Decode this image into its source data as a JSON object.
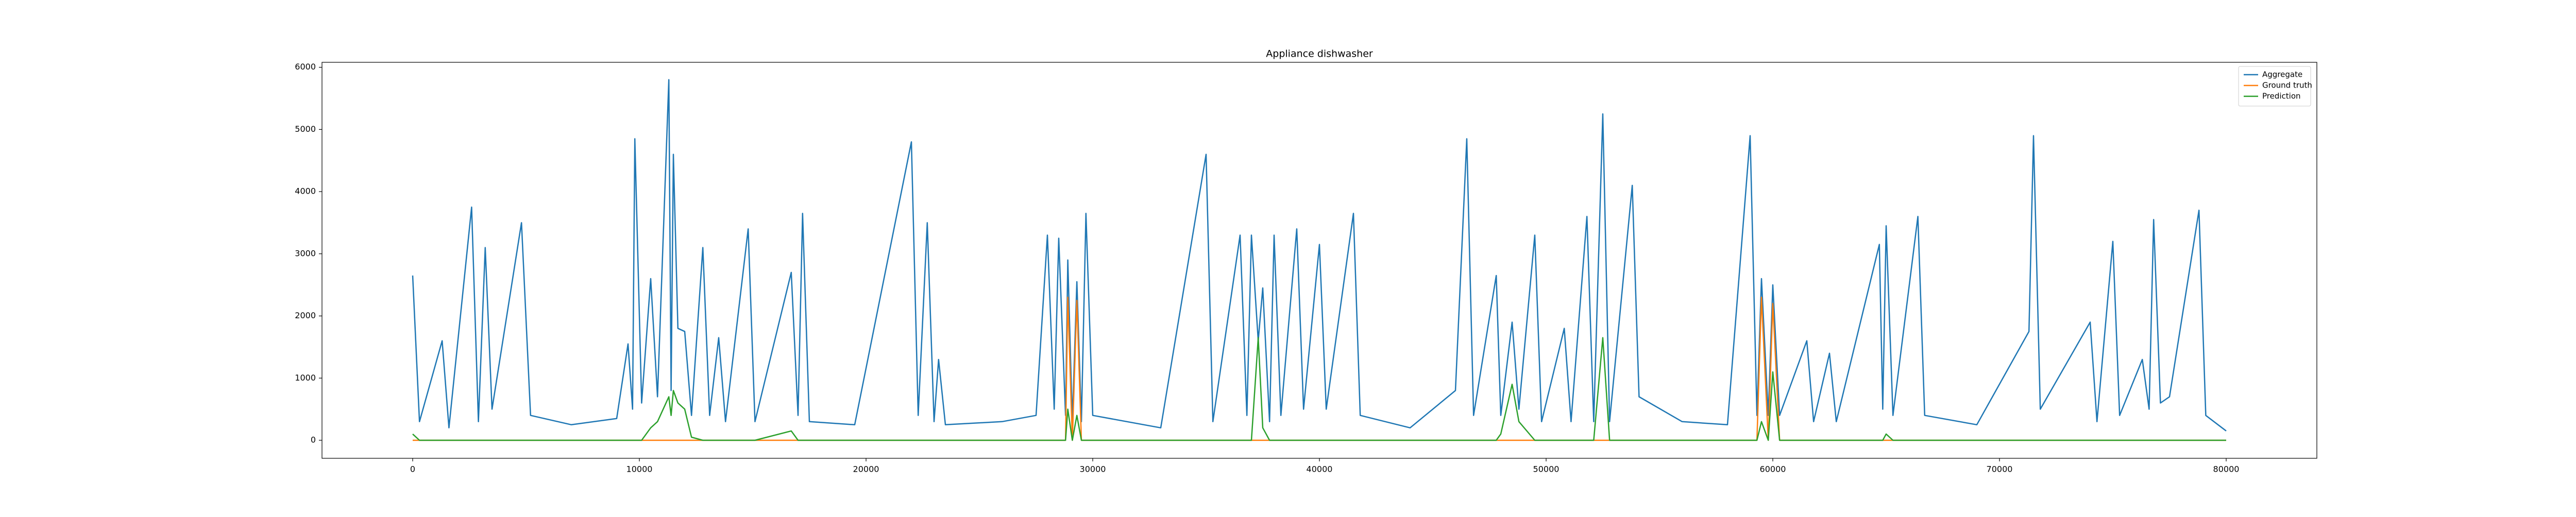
{
  "chart_data": {
    "type": "line",
    "title": "Appliance dishwasher",
    "x": [
      0,
      300,
      1300,
      1600,
      2600,
      2900,
      3200,
      3500,
      4800,
      5200,
      7000,
      9000,
      9500,
      9700,
      9800,
      10100,
      10500,
      10800,
      11300,
      11400,
      11500,
      11700,
      12000,
      12300,
      12800,
      13100,
      13500,
      13800,
      14800,
      15100,
      16700,
      17000,
      17200,
      17500,
      19500,
      22000,
      22300,
      22700,
      23000,
      23200,
      23500,
      26000,
      27500,
      28000,
      28300,
      28500,
      28800,
      28900,
      29100,
      29300,
      29500,
      29700,
      30000,
      33000,
      35000,
      35300,
      36500,
      36800,
      37000,
      37300,
      37500,
      37800,
      38000,
      38300,
      39000,
      39300,
      40000,
      40300,
      41500,
      41800,
      44000,
      46000,
      46500,
      46800,
      47800,
      48000,
      48500,
      48800,
      49500,
      49800,
      50800,
      51100,
      51800,
      52100,
      52500,
      52800,
      53800,
      54100,
      56000,
      58000,
      59000,
      59300,
      59500,
      59800,
      60000,
      60300,
      61500,
      61800,
      62500,
      62800,
      64700,
      64850,
      65000,
      65300,
      66400,
      66700,
      69000,
      71300,
      71500,
      71800,
      74000,
      74300,
      75000,
      75300,
      76300,
      76600,
      76800,
      77100,
      77500,
      78800,
      79100,
      80000
    ],
    "series": [
      {
        "name": "Aggregate",
        "color": "#1f77b4",
        "values": [
          2650,
          300,
          1600,
          200,
          3750,
          300,
          3100,
          500,
          3500,
          400,
          250,
          350,
          1550,
          500,
          4850,
          600,
          2600,
          700,
          5800,
          800,
          4600,
          1800,
          1750,
          400,
          3100,
          400,
          1650,
          300,
          3400,
          300,
          2700,
          400,
          3650,
          300,
          250,
          4800,
          400,
          3500,
          300,
          1300,
          250,
          300,
          400,
          3300,
          500,
          3250,
          400,
          2900,
          300,
          2550,
          300,
          3650,
          400,
          200,
          4600,
          300,
          3300,
          400,
          3300,
          1600,
          2450,
          300,
          3300,
          400,
          3400,
          500,
          3150,
          500,
          3650,
          400,
          200,
          800,
          4850,
          400,
          2650,
          400,
          1900,
          500,
          3300,
          300,
          1800,
          300,
          3600,
          300,
          5250,
          300,
          4100,
          700,
          300,
          250,
          4900,
          400,
          2600,
          400,
          2500,
          400,
          1600,
          300,
          1400,
          300,
          3150,
          500,
          3450,
          400,
          3600,
          400,
          250,
          1750,
          4900,
          500,
          1900,
          300,
          3200,
          400,
          1300,
          500,
          3550,
          600,
          700,
          3700,
          400,
          150
        ]
      },
      {
        "name": "Ground truth",
        "color": "#ff7f0e",
        "values": [
          0,
          0,
          0,
          0,
          0,
          0,
          0,
          0,
          0,
          0,
          0,
          0,
          0,
          0,
          0,
          0,
          0,
          0,
          0,
          0,
          0,
          0,
          0,
          0,
          0,
          0,
          0,
          0,
          0,
          0,
          0,
          0,
          0,
          0,
          0,
          0,
          0,
          0,
          0,
          0,
          0,
          0,
          0,
          0,
          0,
          0,
          0,
          2300,
          0,
          2250,
          0,
          0,
          0,
          0,
          0,
          0,
          0,
          0,
          0,
          0,
          0,
          0,
          0,
          0,
          0,
          0,
          0,
          0,
          0,
          0,
          0,
          0,
          0,
          0,
          0,
          0,
          0,
          0,
          0,
          0,
          0,
          0,
          0,
          0,
          0,
          0,
          0,
          0,
          0,
          0,
          0,
          0,
          2300,
          0,
          2200,
          0,
          0,
          0,
          0,
          0,
          0,
          0,
          0,
          0,
          0,
          0,
          0,
          0,
          0,
          0,
          0,
          0,
          0,
          0,
          0,
          0,
          0,
          0,
          0,
          0,
          0,
          0
        ]
      },
      {
        "name": "Prediction",
        "color": "#2ca02c",
        "values": [
          100,
          0,
          0,
          0,
          0,
          0,
          0,
          0,
          0,
          0,
          0,
          0,
          0,
          0,
          0,
          0,
          200,
          300,
          700,
          400,
          800,
          600,
          500,
          50,
          0,
          0,
          0,
          0,
          0,
          0,
          150,
          0,
          0,
          0,
          0,
          0,
          0,
          0,
          0,
          0,
          0,
          0,
          0,
          0,
          0,
          0,
          0,
          500,
          0,
          400,
          0,
          0,
          0,
          0,
          0,
          0,
          0,
          0,
          0,
          1650,
          200,
          0,
          0,
          0,
          0,
          0,
          0,
          0,
          0,
          0,
          0,
          0,
          0,
          0,
          0,
          100,
          900,
          300,
          0,
          0,
          0,
          0,
          0,
          0,
          1650,
          0,
          0,
          0,
          0,
          0,
          0,
          0,
          300,
          0,
          1100,
          0,
          0,
          0,
          0,
          0,
          0,
          0,
          100,
          0,
          0,
          0,
          0,
          0,
          0,
          0,
          0,
          0,
          0,
          0,
          0,
          0,
          0,
          0,
          0,
          0,
          0,
          0
        ]
      }
    ],
    "xlim": [
      -4000,
      84000
    ],
    "ylim": [
      -290,
      6080
    ],
    "xticks": [
      0,
      10000,
      20000,
      30000,
      40000,
      50000,
      60000,
      70000,
      80000
    ],
    "yticks": [
      0,
      1000,
      2000,
      3000,
      4000,
      5000,
      6000
    ],
    "grid": false,
    "legend": "upper right"
  }
}
